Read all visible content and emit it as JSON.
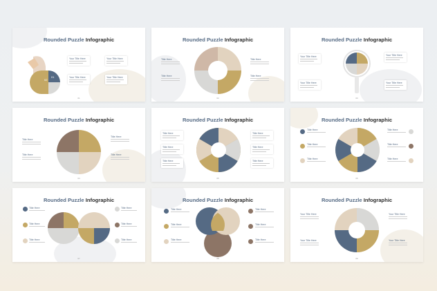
{
  "palette": {
    "navy": "#556a84",
    "gold": "#c4a865",
    "beige": "#d9c9ab",
    "brown": "#8d7566",
    "grey": "#c7c7c4",
    "text": "#2b2b2b"
  },
  "slides": [
    {
      "title_a": "Rounded Puzzle",
      "title_b": "Infographic",
      "num": "01",
      "cards": [
        {
          "h": "Your Title Here"
        },
        {
          "h": "Your Title Here"
        },
        {
          "h": "Your Title Here"
        },
        {
          "h": "Your Title Here"
        }
      ],
      "badges": [
        "02",
        "01"
      ]
    },
    {
      "title_a": "Rounded Puzzle",
      "title_b": "Infographic",
      "num": "02",
      "cards": [
        {
          "h": "Title Here"
        },
        {
          "h": "Title Here"
        },
        {
          "h": "Title Here"
        },
        {
          "h": "Title Here"
        }
      ]
    },
    {
      "title_a": "Rounded Puzzle",
      "title_b": "Infographic",
      "num": "03",
      "cards": [
        {
          "h": "Your Title Here"
        },
        {
          "h": "Your Title Here"
        },
        {
          "h": "Your Title Here"
        },
        {
          "h": "Your Title Here"
        }
      ]
    },
    {
      "title_a": "Rounded Puzzle",
      "title_b": "Infographic",
      "num": "04",
      "cards": [
        {
          "h": "Title Here"
        },
        {
          "h": "Title Here"
        },
        {
          "h": "Title Here"
        },
        {
          "h": "Title Here"
        }
      ]
    },
    {
      "title_a": "Rounded Puzzle",
      "title_b": "Infographic",
      "num": "05",
      "cards": [
        {
          "h": "Title Here"
        },
        {
          "h": "Title Here"
        },
        {
          "h": "Title Here"
        },
        {
          "h": "Title Here"
        },
        {
          "h": "Title Here"
        },
        {
          "h": "Title Here"
        }
      ]
    },
    {
      "title_a": "Rounded Puzzle",
      "title_b": "Infographic",
      "num": "06",
      "cards": [
        {
          "h": "Title Here"
        },
        {
          "h": "Title Here"
        },
        {
          "h": "Title Here"
        },
        {
          "h": "Title Here"
        },
        {
          "h": "Title Here"
        },
        {
          "h": "Title Here"
        }
      ]
    },
    {
      "title_a": "Rounded Puzzle",
      "title_b": "Infographic",
      "num": "07",
      "cards": [
        {
          "h": "Title Here"
        },
        {
          "h": "Title Here"
        },
        {
          "h": "Title Here"
        },
        {
          "h": "Title Here"
        },
        {
          "h": "Title Here"
        },
        {
          "h": "Title Here"
        }
      ]
    },
    {
      "title_a": "Rounded Puzzle",
      "title_b": "Infographic",
      "num": "08",
      "cards": [
        {
          "h": "Title Here"
        },
        {
          "h": "Title Here"
        },
        {
          "h": "Title Here"
        },
        {
          "h": "Title Here"
        },
        {
          "h": "Title Here"
        },
        {
          "h": "Title Here"
        }
      ]
    },
    {
      "title_a": "Rounded Puzzle",
      "title_b": "Infographic",
      "num": "09",
      "cards": [
        {
          "h": "Your Title Here"
        },
        {
          "h": "Your Title Here"
        },
        {
          "h": "Your Title Here"
        },
        {
          "h": "Your Title Here"
        }
      ]
    }
  ]
}
